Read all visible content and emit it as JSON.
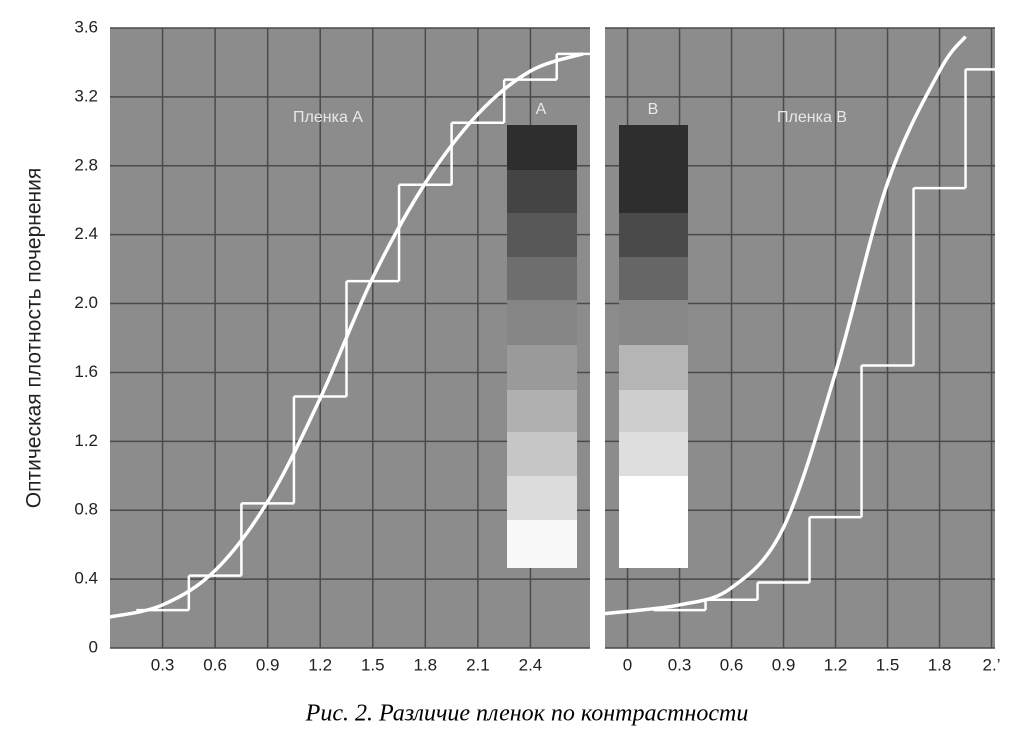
{
  "caption": "Рис. 2. Различие пленок по контрастности",
  "chart_data": [
    {
      "type": "line",
      "y_label": "Оптическая плотность почернения",
      "xlim": [
        0,
        2.74
      ],
      "xticks": [
        0.3,
        0.6,
        0.9,
        1.2,
        1.5,
        1.8,
        2.1,
        2.4
      ],
      "ylim": [
        0,
        3.6
      ],
      "yticks": [
        {
          "value": 0,
          "label": "0"
        },
        0.4,
        0.8,
        1.2,
        1.6,
        {
          "value": 2,
          "label": "2.0"
        },
        2.4,
        2.8,
        3.2,
        3.6
      ],
      "grid": true,
      "annotations": [
        "Пленка A",
        "A"
      ],
      "series": [
        {
          "drawstyle": "steps",
          "color": "#ffffff",
          "x": [
            0.15,
            0.45,
            0.75,
            1.05,
            1.35,
            1.65,
            1.95,
            2.25,
            2.55
          ],
          "values": [
            0.22,
            0.42,
            0.84,
            1.46,
            2.13,
            2.69,
            3.05,
            3.3,
            3.45
          ]
        },
        {
          "drawstyle": "smooth",
          "color": "#ffffff",
          "x": [
            0,
            0.3,
            0.6,
            0.9,
            1.2,
            1.5,
            1.8,
            2.1,
            2.4,
            2.7
          ],
          "values": [
            0.18,
            0.25,
            0.45,
            0.85,
            1.45,
            2.15,
            2.7,
            3.1,
            3.35,
            3.45
          ]
        }
      ]
    },
    {
      "type": "line",
      "xlim": [
        -0.13,
        2.12
      ],
      "xticks": [
        0,
        0.3,
        0.6,
        0.9,
        1.2,
        1.5,
        1.8,
        {
          "value": 2.1,
          "label": "2.’"
        }
      ],
      "ylim": [
        0,
        3.6
      ],
      "grid": true,
      "annotations": [
        "Пленка B",
        "B"
      ],
      "series": [
        {
          "drawstyle": "steps",
          "color": "#ffffff",
          "x": [
            0.15,
            0.45,
            0.75,
            1.05,
            1.35,
            1.65,
            1.95
          ],
          "values": [
            0.22,
            0.28,
            0.38,
            0.76,
            1.64,
            2.67,
            3.36
          ]
        },
        {
          "drawstyle": "smooth",
          "color": "#ffffff",
          "x": [
            -0.13,
            0.3,
            0.6,
            0.9,
            1.2,
            1.5,
            1.8,
            1.95
          ],
          "values": [
            0.2,
            0.25,
            0.35,
            0.7,
            1.6,
            2.7,
            3.35,
            3.55
          ]
        }
      ]
    }
  ]
}
